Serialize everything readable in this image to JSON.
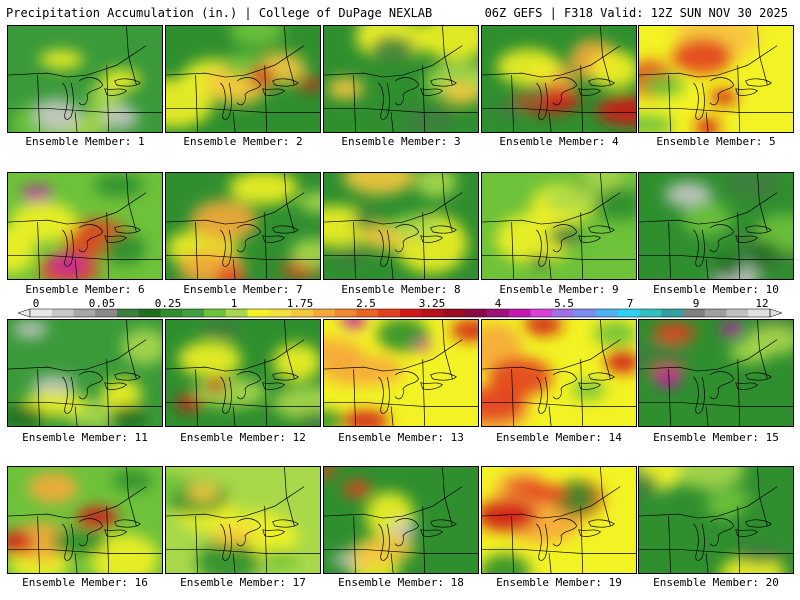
{
  "header": {
    "left_title": "Precipitation Accumulation (in.) | College of DuPage NEXLAB",
    "right_title": "06Z GEFS | F318 Valid: 12Z SUN NOV 30 2025"
  },
  "colorbar": {
    "tick_labels": [
      "0",
      "0.05",
      "0.25",
      "1",
      "1.75",
      "2.5",
      "3.25",
      "4",
      "5.5",
      "7",
      "9",
      "12"
    ],
    "colors": [
      "#e8e8e8",
      "#c8c8c8",
      "#a8a8a8",
      "#888888",
      "#3e7e3e",
      "#1f6f1f",
      "#2f8f2f",
      "#3fa03f",
      "#6ec23a",
      "#a8d84a",
      "#f2f224",
      "#f4e03a",
      "#f6c83e",
      "#f6a83a",
      "#f2862e",
      "#ec6424",
      "#e2401e",
      "#d01818",
      "#b81018",
      "#9c0c20",
      "#8a0a48",
      "#a0107a",
      "#c418b0",
      "#d840d8",
      "#a070e8",
      "#7a8cf0",
      "#50b0f4",
      "#30d0f0",
      "#30c0c0",
      "#30a0a0",
      "#808080",
      "#a0a0a0",
      "#c0c0c0",
      "#e0e0e0"
    ]
  },
  "members": [
    {
      "label": "Ensemble Member: 1",
      "base": "#3a9a3a",
      "blobs": [
        [
          "#6ec23a",
          30
        ],
        [
          "#a8d84a",
          22
        ],
        [
          "#c8c8c8",
          20
        ],
        [
          "#f2f224",
          18
        ]
      ]
    },
    {
      "label": "Ensemble Member: 2",
      "base": "#2f8f2f",
      "blobs": [
        [
          "#f2f224",
          34
        ],
        [
          "#f6c83e",
          26
        ],
        [
          "#6ec23a",
          22
        ],
        [
          "#d01818",
          12
        ]
      ]
    },
    {
      "label": "Ensemble Member: 3",
      "base": "#2f8f2f",
      "blobs": [
        [
          "#a8d84a",
          28
        ],
        [
          "#f2f224",
          30
        ],
        [
          "#3e7e3e",
          22
        ],
        [
          "#f6c83e",
          14
        ]
      ]
    },
    {
      "label": "Ensemble Member: 4",
      "base": "#2f8f2f",
      "blobs": [
        [
          "#f6a83a",
          30
        ],
        [
          "#d01818",
          26
        ],
        [
          "#f2f224",
          24
        ],
        [
          "#3e7e3e",
          14
        ]
      ]
    },
    {
      "label": "Ensemble Member: 5",
      "base": "#f2f224",
      "blobs": [
        [
          "#f6c83e",
          32
        ],
        [
          "#e2401e",
          24
        ],
        [
          "#6ec23a",
          20
        ],
        [
          "#d01818",
          14
        ]
      ]
    },
    {
      "label": "Ensemble Member: 6",
      "base": "#6ec23a",
      "blobs": [
        [
          "#e2401e",
          28
        ],
        [
          "#c418b0",
          14
        ],
        [
          "#f2f224",
          30
        ],
        [
          "#2f8f2f",
          20
        ]
      ]
    },
    {
      "label": "Ensemble Member: 7",
      "base": "#2f8f2f",
      "blobs": [
        [
          "#f2f224",
          30
        ],
        [
          "#f6a83a",
          26
        ],
        [
          "#e2401e",
          16
        ],
        [
          "#a8d84a",
          20
        ]
      ]
    },
    {
      "label": "Ensemble Member: 8",
      "base": "#2f8f2f",
      "blobs": [
        [
          "#f2f224",
          34
        ],
        [
          "#f6c83e",
          28
        ],
        [
          "#a8d84a",
          22
        ],
        [
          "#3e7e3e",
          14
        ]
      ]
    },
    {
      "label": "Ensemble Member: 9",
      "base": "#6ec23a",
      "blobs": [
        [
          "#2f8f2f",
          28
        ],
        [
          "#f2f224",
          30
        ],
        [
          "#a8d84a",
          22
        ],
        [
          "#3e7e3e",
          14
        ]
      ]
    },
    {
      "label": "Ensemble Member: 10",
      "base": "#2f8f2f",
      "blobs": [
        [
          "#3e7e3e",
          30
        ],
        [
          "#c8c8c8",
          18
        ],
        [
          "#6ec23a",
          24
        ],
        [
          "#1f6f1f",
          16
        ]
      ]
    },
    {
      "label": "Ensemble Member: 11",
      "base": "#3a9a3a",
      "blobs": [
        [
          "#a8d84a",
          28
        ],
        [
          "#f2f224",
          24
        ],
        [
          "#c8c8c8",
          16
        ],
        [
          "#1f6f1f",
          18
        ]
      ]
    },
    {
      "label": "Ensemble Member: 12",
      "base": "#2f8f2f",
      "blobs": [
        [
          "#a8d84a",
          30
        ],
        [
          "#f2f224",
          24
        ],
        [
          "#d01818",
          12
        ],
        [
          "#3e7e3e",
          18
        ]
      ]
    },
    {
      "label": "Ensemble Member: 13",
      "base": "#f2f224",
      "blobs": [
        [
          "#f6a83a",
          30
        ],
        [
          "#d01818",
          18
        ],
        [
          "#2f8f2f",
          22
        ],
        [
          "#c418b0",
          10
        ]
      ]
    },
    {
      "label": "Ensemble Member: 14",
      "base": "#f2f224",
      "blobs": [
        [
          "#f6a83a",
          30
        ],
        [
          "#e2401e",
          24
        ],
        [
          "#6ec23a",
          18
        ],
        [
          "#d01818",
          14
        ]
      ]
    },
    {
      "label": "Ensemble Member: 15",
      "base": "#2f8f2f",
      "blobs": [
        [
          "#3e7e3e",
          26
        ],
        [
          "#e2401e",
          16
        ],
        [
          "#a8d84a",
          22
        ],
        [
          "#c418b0",
          12
        ]
      ]
    },
    {
      "label": "Ensemble Member: 16",
      "base": "#6ec23a",
      "blobs": [
        [
          "#f2f224",
          30
        ],
        [
          "#f6a83a",
          22
        ],
        [
          "#d01818",
          16
        ],
        [
          "#2f8f2f",
          20
        ]
      ]
    },
    {
      "label": "Ensemble Member: 17",
      "base": "#a8d84a",
      "blobs": [
        [
          "#f2f224",
          32
        ],
        [
          "#2f8f2f",
          24
        ],
        [
          "#f6c83e",
          20
        ],
        [
          "#6ec23a",
          16
        ]
      ]
    },
    {
      "label": "Ensemble Member: 18",
      "base": "#2f8f2f",
      "blobs": [
        [
          "#f2f224",
          30
        ],
        [
          "#c8c8c8",
          14
        ],
        [
          "#f6c83e",
          22
        ],
        [
          "#e2401e",
          12
        ]
      ]
    },
    {
      "label": "Ensemble Member: 19",
      "base": "#f2f224",
      "blobs": [
        [
          "#f6a83a",
          30
        ],
        [
          "#d01818",
          22
        ],
        [
          "#2f8f2f",
          22
        ],
        [
          "#e2401e",
          16
        ]
      ]
    },
    {
      "label": "Ensemble Member: 20",
      "base": "#2f8f2f",
      "blobs": [
        [
          "#a8d84a",
          28
        ],
        [
          "#f2f224",
          26
        ],
        [
          "#3e7e3e",
          20
        ],
        [
          "#6ec23a",
          18
        ]
      ]
    }
  ]
}
